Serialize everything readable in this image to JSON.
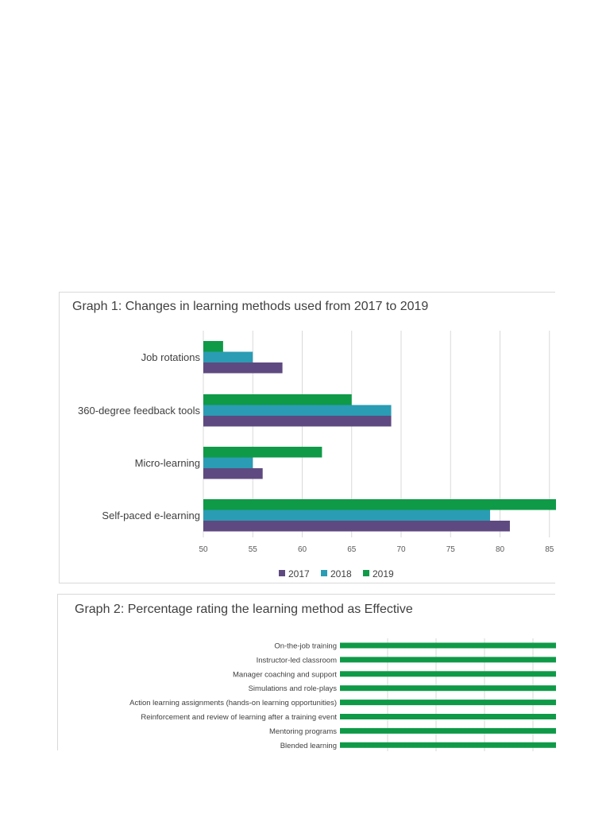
{
  "chart_data": [
    {
      "type": "bar",
      "orientation": "horizontal",
      "title": "Graph 1: Changes in learning methods used from 2017 to 2019",
      "categories": [
        "Job rotations",
        "360-degree feedback tools",
        "Micro-learning",
        "Self-paced e-learning"
      ],
      "series": [
        {
          "name": "2017",
          "color": "#5e4a80",
          "values": [
            58,
            69,
            56,
            81
          ]
        },
        {
          "name": "2018",
          "color": "#2a9cb3",
          "values": [
            55,
            69,
            55,
            79
          ]
        },
        {
          "name": "2019",
          "color": "#0f9a48",
          "values": [
            52,
            65,
            62,
            86
          ]
        }
      ],
      "xlim": [
        50,
        85
      ],
      "xticks": [
        "50",
        "55",
        "60",
        "65",
        "70",
        "75",
        "80",
        "85"
      ],
      "grid": true,
      "legend": "bottom"
    },
    {
      "type": "bar",
      "orientation": "horizontal",
      "title": "Graph 2: Percentage rating the learning method as Effective",
      "categories": [
        "On-the-job training",
        "Instructor-led classroom",
        "Manager coaching and support",
        "Simulations and role-plays",
        "Action learning assignments (hands-on learning opportunities)",
        "Reinforcement and review of learning after a training event",
        "Mentoring programs",
        "Blended learning"
      ],
      "series": [
        {
          "color": "#0f9a48",
          "values": [
            100,
            100,
            100,
            100,
            100,
            100,
            100,
            100
          ]
        }
      ],
      "grid": true
    }
  ]
}
